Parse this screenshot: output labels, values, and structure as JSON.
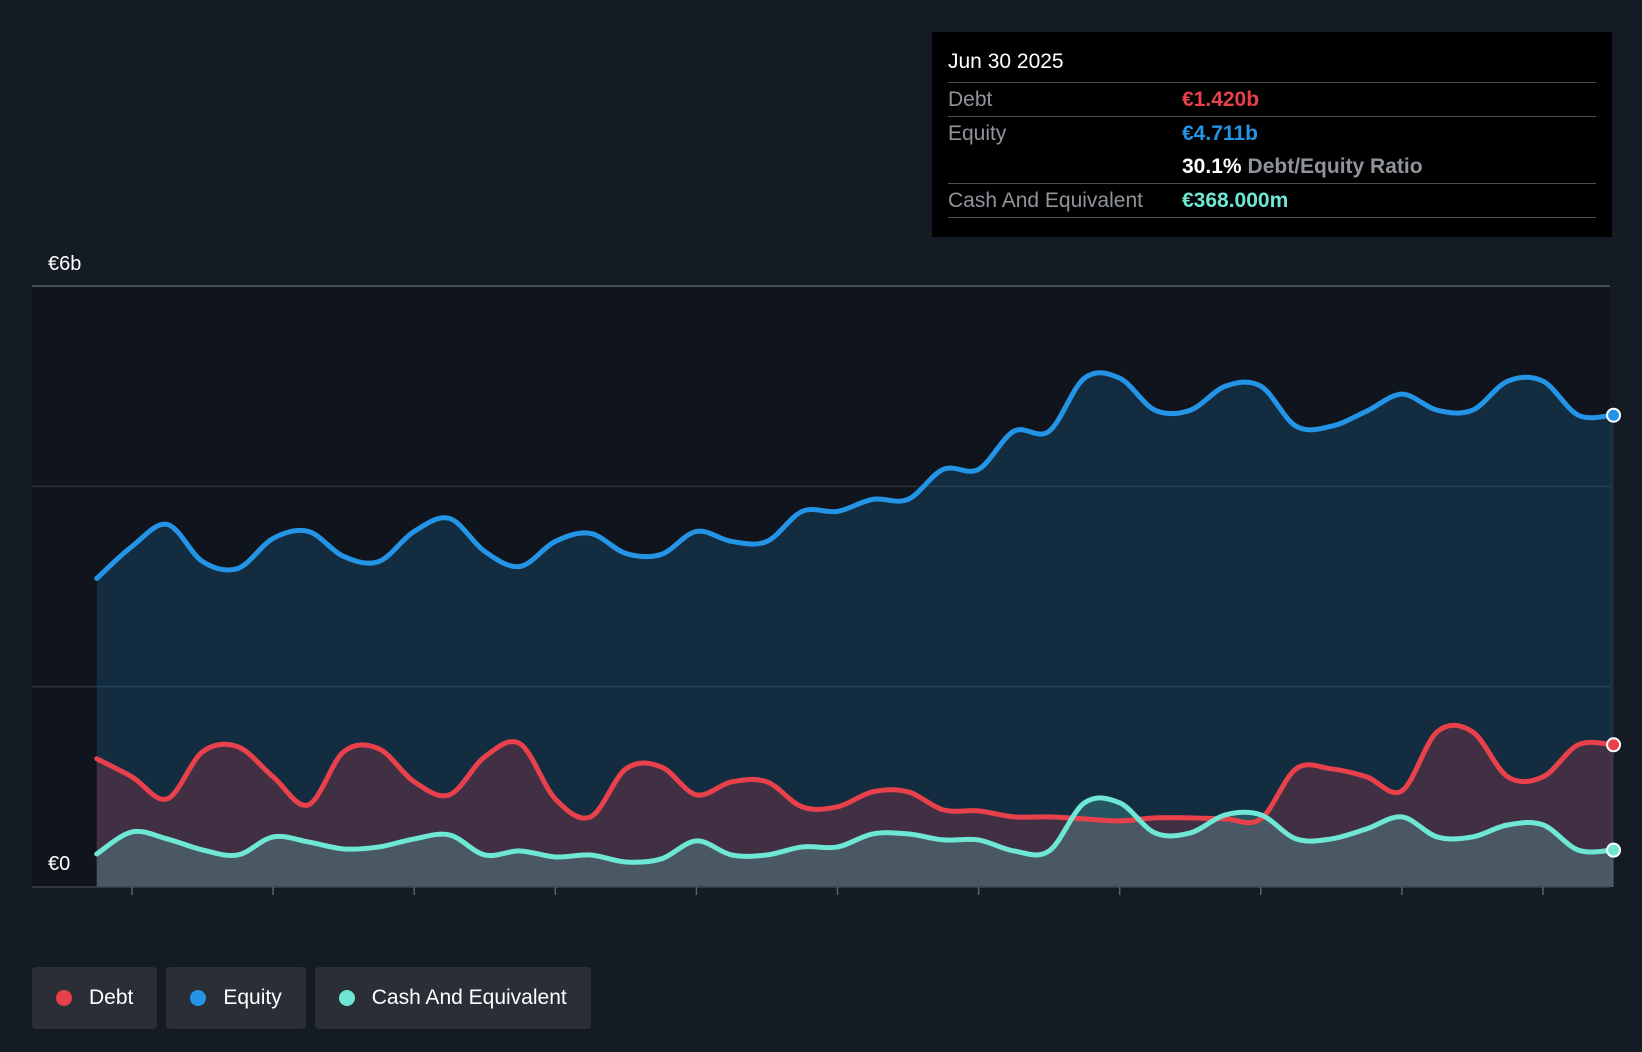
{
  "tooltip": {
    "date": "Jun 30 2025",
    "debt_label": "Debt",
    "debt_value": "€1.420b",
    "equity_label": "Equity",
    "equity_value": "€4.711b",
    "ratio_value": "30.1%",
    "ratio_label": "Debt/Equity Ratio",
    "cash_label": "Cash And Equivalent",
    "cash_value": "€368.000m"
  },
  "legend": {
    "debt": "Debt",
    "equity": "Equity",
    "cash": "Cash And Equivalent"
  },
  "colors": {
    "debt": "#e8414c",
    "equity": "#2394e6",
    "cash": "#6ee7d4",
    "background": "#151b24",
    "plot_background": "#10151d"
  },
  "chart_data": {
    "type": "area",
    "title": "",
    "xlabel": "",
    "ylabel": "",
    "ylim": [
      0,
      6
    ],
    "y_unit": "€b",
    "y_tick_labels": [
      {
        "value": 0,
        "label": "€0"
      },
      {
        "value": 6,
        "label": "€6b"
      }
    ],
    "gridlines": [
      0,
      2,
      4,
      6
    ],
    "xlim": [
      2014.75,
      2025.5
    ],
    "x_ticks": [
      2015,
      2016,
      2017,
      2018,
      2019,
      2020,
      2021,
      2022,
      2023,
      2024,
      2025
    ],
    "x": [
      2014.75,
      2015.0,
      2015.25,
      2015.5,
      2015.75,
      2016.0,
      2016.25,
      2016.5,
      2016.75,
      2017.0,
      2017.25,
      2017.5,
      2017.75,
      2018.0,
      2018.25,
      2018.5,
      2018.75,
      2019.0,
      2019.25,
      2019.5,
      2019.75,
      2020.0,
      2020.25,
      2020.5,
      2020.75,
      2021.0,
      2021.25,
      2021.5,
      2021.75,
      2022.0,
      2022.25,
      2022.5,
      2022.75,
      2023.0,
      2023.25,
      2023.5,
      2023.75,
      2024.0,
      2024.25,
      2024.5,
      2024.75,
      2025.0,
      2025.25,
      2025.5
    ],
    "series": [
      {
        "name": "Debt",
        "values": [
          1.28,
          1.1,
          0.88,
          1.35,
          1.4,
          1.1,
          0.82,
          1.35,
          1.38,
          1.05,
          0.92,
          1.3,
          1.43,
          0.88,
          0.7,
          1.18,
          1.2,
          0.92,
          1.05,
          1.05,
          0.8,
          0.8,
          0.95,
          0.95,
          0.77,
          0.76,
          0.7,
          0.7,
          0.68,
          0.66,
          0.69,
          0.69,
          0.68,
          0.68,
          1.18,
          1.18,
          1.1,
          0.96,
          1.55,
          1.55,
          1.1,
          1.1,
          1.42,
          1.42
        ]
      },
      {
        "name": "Equity",
        "values": [
          3.08,
          3.4,
          3.62,
          3.25,
          3.18,
          3.48,
          3.55,
          3.3,
          3.25,
          3.55,
          3.68,
          3.35,
          3.2,
          3.45,
          3.53,
          3.33,
          3.32,
          3.55,
          3.45,
          3.45,
          3.75,
          3.75,
          3.87,
          3.87,
          4.17,
          4.17,
          4.55,
          4.55,
          5.08,
          5.08,
          4.76,
          4.76,
          5.0,
          5.0,
          4.6,
          4.6,
          4.75,
          4.92,
          4.76,
          4.76,
          5.05,
          5.05,
          4.71,
          4.71
        ]
      },
      {
        "name": "Cash And Equivalent",
        "values": [
          0.33,
          0.55,
          0.48,
          0.37,
          0.32,
          0.5,
          0.45,
          0.38,
          0.4,
          0.48,
          0.52,
          0.32,
          0.36,
          0.3,
          0.32,
          0.25,
          0.28,
          0.46,
          0.32,
          0.32,
          0.4,
          0.4,
          0.53,
          0.53,
          0.47,
          0.47,
          0.36,
          0.36,
          0.84,
          0.84,
          0.54,
          0.54,
          0.72,
          0.72,
          0.48,
          0.48,
          0.58,
          0.7,
          0.5,
          0.5,
          0.62,
          0.62,
          0.368,
          0.368
        ]
      }
    ],
    "highlighted_point": {
      "x": 2025.5,
      "date": "Jun 30 2025"
    }
  }
}
